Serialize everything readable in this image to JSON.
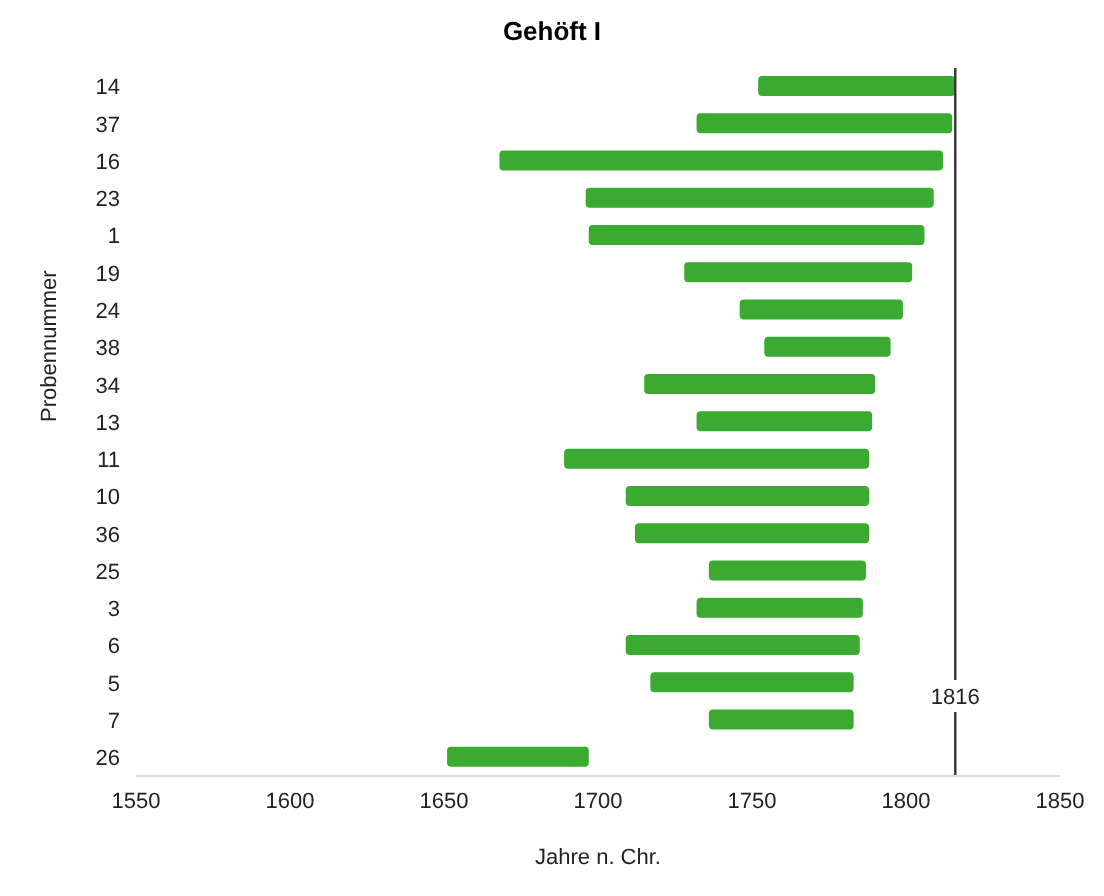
{
  "chart_data": {
    "type": "bar",
    "orientation": "horizontal",
    "title": "Gehöft I",
    "xlabel": "Jahre n. Chr.",
    "ylabel": "Probennummer",
    "categories": [
      "14",
      "37",
      "16",
      "23",
      "1",
      "19",
      "24",
      "38",
      "34",
      "13",
      "11",
      "10",
      "36",
      "25",
      "3",
      "6",
      "5",
      "7",
      "26"
    ],
    "base": [
      1752,
      1732,
      1668,
      1696,
      1697,
      1728,
      1746,
      1754,
      1715,
      1732,
      1689,
      1709,
      1712,
      1736,
      1732,
      1709,
      1717,
      1736,
      1651
    ],
    "values": [
      64,
      83,
      144,
      113,
      109,
      74,
      53,
      41,
      75,
      57,
      99,
      79,
      76,
      51,
      54,
      76,
      66,
      47,
      46
    ],
    "color": "#3aaa30",
    "xlim": [
      1550,
      1850
    ],
    "xticks": [
      1550,
      1600,
      1650,
      1700,
      1750,
      1800,
      1850
    ],
    "ref_lines": [
      {
        "axis": "x",
        "value": 1816,
        "label": "1816",
        "color": "#333333"
      }
    ],
    "grid": false,
    "legend": false
  }
}
